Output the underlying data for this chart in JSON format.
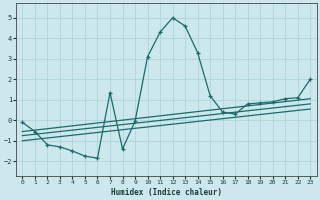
{
  "xlabel": "Humidex (Indice chaleur)",
  "bg_color": "#cde8ec",
  "grid_color": "#a8d0d8",
  "line_color": "#1a6b6b",
  "xlim": [
    -0.5,
    23.5
  ],
  "ylim": [
    -2.7,
    5.7
  ],
  "xticks": [
    0,
    1,
    2,
    3,
    4,
    5,
    6,
    7,
    8,
    9,
    10,
    11,
    12,
    13,
    14,
    15,
    16,
    17,
    18,
    19,
    20,
    21,
    22,
    23
  ],
  "yticks": [
    -2,
    -1,
    0,
    1,
    2,
    3,
    4,
    5
  ],
  "main_series_x": [
    0,
    1,
    2,
    3,
    4,
    5,
    6,
    7,
    8,
    9,
    10,
    11,
    12,
    13,
    14,
    15,
    16,
    17,
    18,
    19,
    20,
    21,
    22,
    23
  ],
  "main_series_y": [
    -0.1,
    -0.55,
    -1.2,
    -1.3,
    -1.5,
    -1.75,
    -1.85,
    1.35,
    -1.4,
    -0.05,
    3.1,
    4.3,
    5.0,
    4.6,
    3.3,
    1.2,
    0.4,
    0.3,
    0.8,
    0.85,
    0.9,
    1.05,
    1.1,
    2.0
  ],
  "line1_x": [
    0,
    23
  ],
  "line1_y": [
    -1.0,
    0.55
  ],
  "line2_x": [
    0,
    23
  ],
  "line2_y": [
    -0.75,
    0.8
  ],
  "line3_x": [
    0,
    23
  ],
  "line3_y": [
    -0.55,
    1.05
  ]
}
